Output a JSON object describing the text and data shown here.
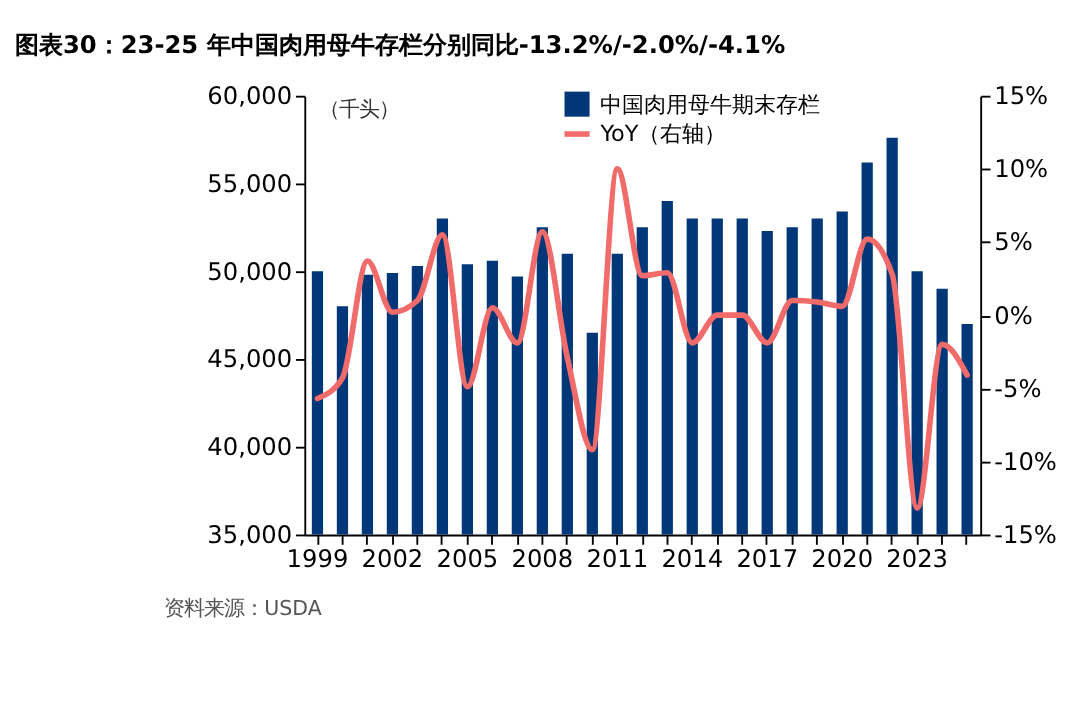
{
  "chart_data": {
    "type": "bar",
    "title": "图表30：23-25 年中国肉用母牛存栏分别同比-13.2%/-2.0%/-4.1%",
    "categories": [
      "1999",
      null,
      null,
      "2002",
      null,
      null,
      "2005",
      null,
      null,
      "2008",
      null,
      null,
      "2011",
      null,
      null,
      "2014",
      null,
      null,
      "2017",
      null,
      null,
      "2020",
      null,
      null,
      "2023",
      null,
      null
    ],
    "series": [
      {
        "name": "中国肉用母牛期末存栏",
        "color": "#003778",
        "values": [
          50000,
          48000,
          49800,
          49900,
          50300,
          53000,
          50400,
          50600,
          49700,
          52500,
          51000,
          46500,
          51000,
          52500,
          54000,
          53000,
          53000,
          53000,
          52300,
          52500,
          53000,
          53400,
          56200,
          57600,
          50000,
          49000,
          47000
        ]
      },
      {
        "name": "YoY（右轴）",
        "type": "line",
        "axis": "y2",
        "color": "#f26b6b",
        "values": [
          -5.7,
          -4.3,
          3.7,
          0.2,
          1.0,
          5.5,
          -4.9,
          0.5,
          -1.9,
          5.7,
          -2.9,
          -9.2,
          10.0,
          2.7,
          2.9,
          -1.9,
          0.0,
          0.0,
          -1.9,
          1.0,
          0.9,
          0.6,
          5.2,
          2.8,
          -13.2,
          -2.0,
          -4.1
        ]
      }
    ],
    "ylim": [
      35000,
      60000
    ],
    "yticks": [
      {
        "value": 35000,
        "label": "35,000"
      },
      {
        "value": 40000,
        "label": "40,000"
      },
      {
        "value": 45000,
        "label": "45,000"
      },
      {
        "value": 50000,
        "label": "50,000"
      },
      {
        "value": 55000,
        "label": "55,000"
      },
      {
        "value": 60000,
        "label": "60,000"
      }
    ],
    "y2lim": [
      -15,
      15
    ],
    "y2ticks": [
      {
        "value": -15,
        "label": "-15%"
      },
      {
        "value": -10,
        "label": "-10%"
      },
      {
        "value": -5,
        "label": "-5%"
      },
      {
        "value": 0,
        "label": "0%"
      },
      {
        "value": 5,
        "label": "5%"
      },
      {
        "value": 10,
        "label": "10%"
      },
      {
        "value": 15,
        "label": "15%"
      }
    ],
    "legend": "top",
    "grid": false,
    "annotations": [
      "（千头）",
      "资料来源：USDA"
    ]
  }
}
